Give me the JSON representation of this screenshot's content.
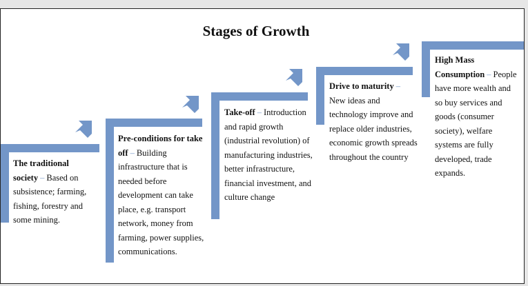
{
  "title": "Stages of Growth",
  "stages": [
    {
      "title": "The traditional society",
      "dash": "–",
      "desc": "Based on subsistence; farming, fishing, forestry and some mining."
    },
    {
      "title": "Pre-conditions for take off",
      "dash": "–",
      "desc": "Building infrastructure that is needed before development can take place, e.g. transport network, money from farming, power supplies, communications."
    },
    {
      "title": "Take-off",
      "dash": "–",
      "desc": "Introduction and rapid growth (industrial revolution) of manufacturing industries, better infrastructure, financial investment, and culture change"
    },
    {
      "title": "Drive to maturity",
      "dash": "–",
      "desc": "New ideas and technology improve and replace older industries, economic growth spreads throughout the country"
    },
    {
      "title": "High Mass Consumption",
      "dash": "–",
      "desc": "People have more wealth and so buy services and goods (consumer society), welfare systems are fully developed, trade expands."
    }
  ],
  "colors": {
    "shape": "#7396c8",
    "text": "#111111",
    "border": "#222222"
  }
}
